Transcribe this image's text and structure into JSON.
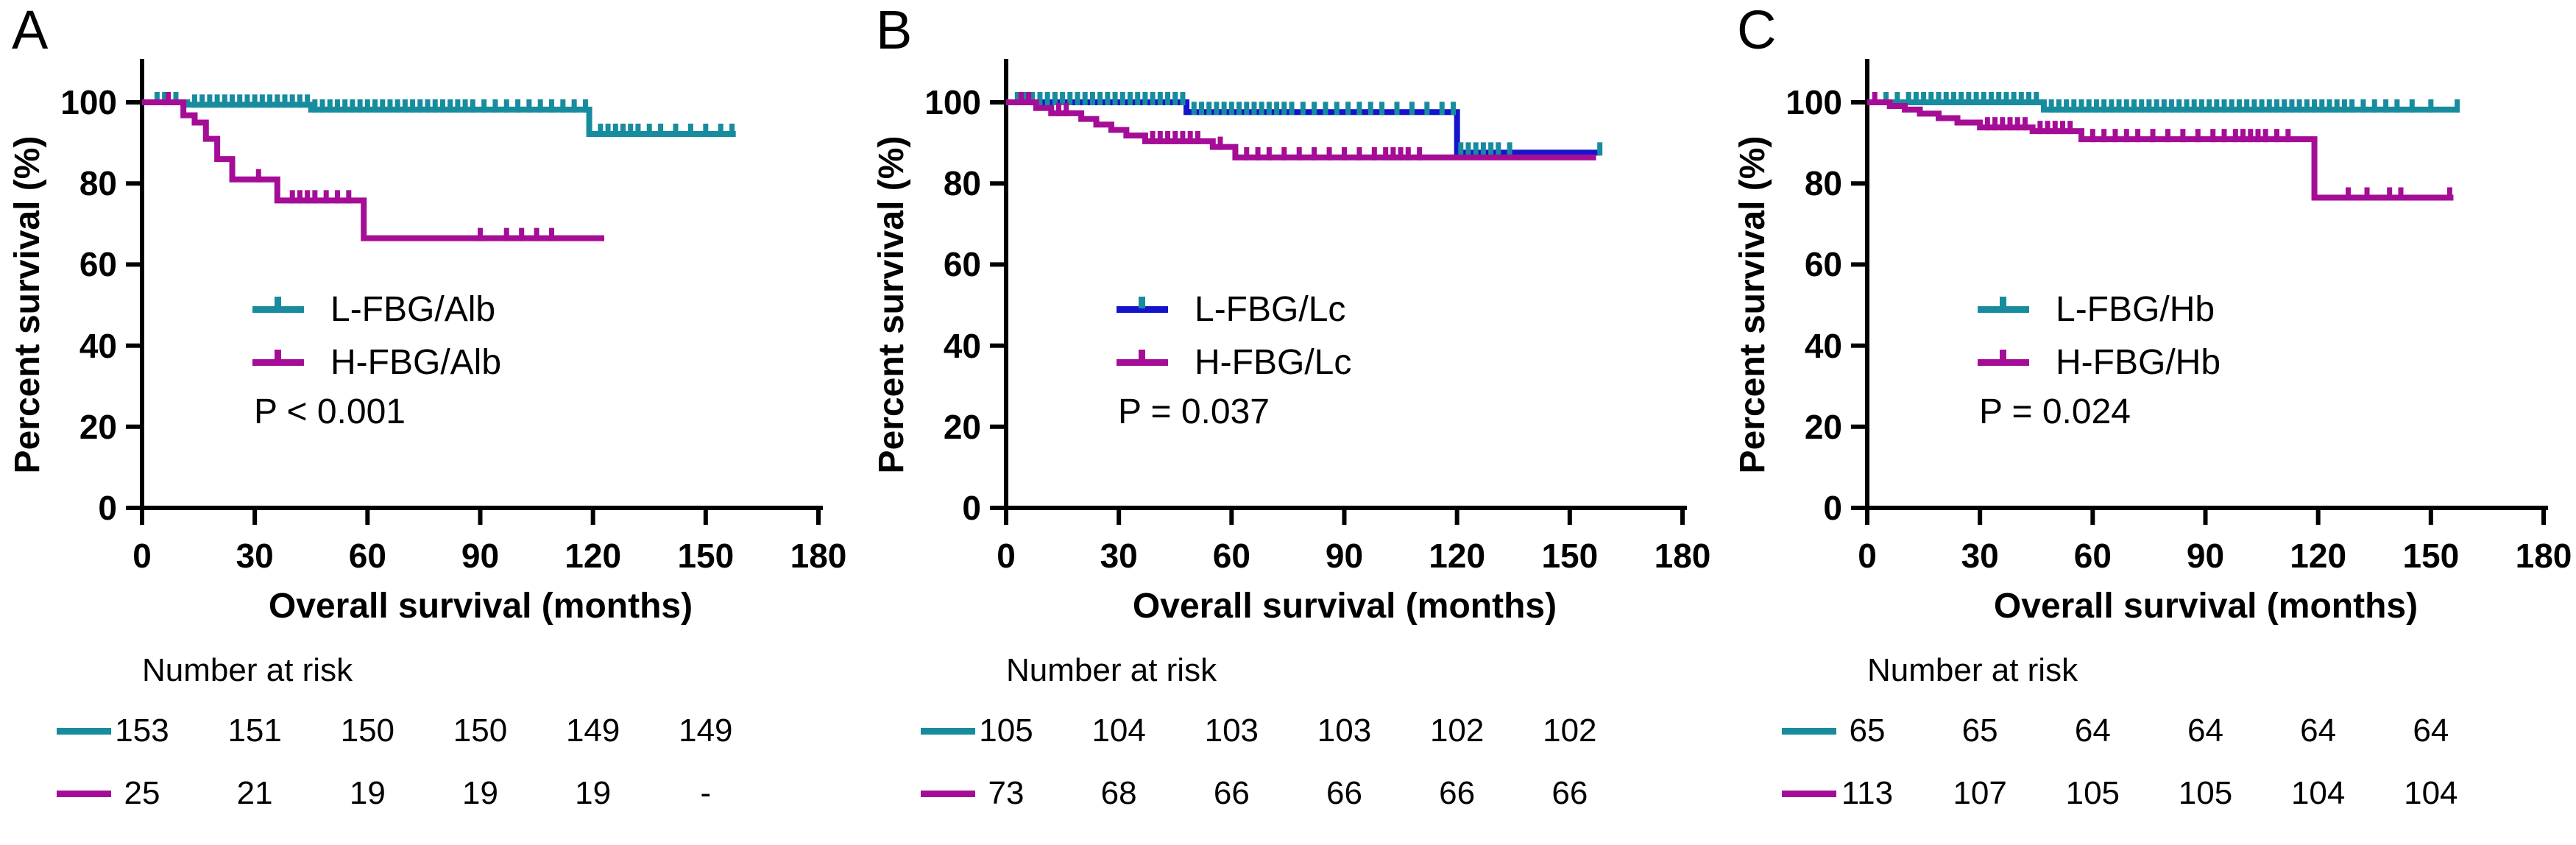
{
  "figure": {
    "background": "#ffffff",
    "colors": {
      "teal": "#178C9E",
      "magenta": "#A50D97",
      "blue": "#1414CC",
      "text": "#000000"
    }
  },
  "chart_data": [
    {
      "panel_label": "A",
      "type": "line",
      "subtype": "kaplan-meier-step",
      "ylabel": "Percent survival (%)",
      "xlabel": "Overall survival (months)",
      "p_label": "P < 0.001",
      "risk_label": "Number at risk",
      "xlim": [
        0,
        180
      ],
      "ylim": [
        0,
        100
      ],
      "xticks": [
        0,
        30,
        60,
        90,
        120,
        150,
        180
      ],
      "yticks": [
        0,
        20,
        40,
        60,
        80,
        100
      ],
      "grid": false,
      "legend_position": "inside-left-middle",
      "series": [
        {
          "name": "L-FBG/Alb",
          "color": "#178C9E",
          "censor_color": "#178C9E",
          "steps": [
            [
              0,
              100
            ],
            [
              12,
              99.4
            ],
            [
              45,
              98.2
            ],
            [
              119,
              92.2
            ]
          ],
          "end": 158,
          "censors": [
            4,
            6,
            9,
            14,
            16,
            18,
            20,
            22,
            24,
            26,
            28,
            30,
            32,
            34,
            36,
            38,
            40,
            42,
            44,
            46,
            48,
            50,
            52,
            54,
            56,
            58,
            60,
            62,
            64,
            66,
            68,
            70,
            72,
            74,
            76,
            78,
            80,
            82,
            84,
            86,
            88,
            91,
            94,
            97,
            100,
            103,
            106,
            109,
            112,
            115,
            118,
            122,
            124,
            126,
            128,
            130,
            132,
            135,
            138,
            142,
            146,
            150,
            154,
            157
          ]
        },
        {
          "name": "H-FBG/Alb",
          "color": "#A50D97",
          "censor_color": "#A50D97",
          "steps": [
            [
              0,
              100
            ],
            [
              11,
              96.8
            ],
            [
              14,
              95
            ],
            [
              17,
              91
            ],
            [
              20,
              86
            ],
            [
              24,
              81
            ],
            [
              36,
              75.8
            ],
            [
              59,
              66.5
            ]
          ],
          "end": 123,
          "censors": [
            7,
            31,
            40,
            42,
            44,
            46,
            49,
            52,
            55,
            90,
            97,
            101,
            105,
            109
          ]
        }
      ],
      "number_at_risk": {
        "times": [
          0,
          30,
          60,
          90,
          120,
          150
        ],
        "rows": [
          {
            "name": "L-FBG/Alb",
            "color": "#178C9E",
            "values": [
              "153",
              "151",
              "150",
              "150",
              "149",
              "149"
            ]
          },
          {
            "name": "H-FBG/Alb",
            "color": "#A50D97",
            "values": [
              "25",
              "21",
              "19",
              "19",
              "19",
              "-"
            ]
          }
        ]
      }
    },
    {
      "panel_label": "B",
      "type": "line",
      "subtype": "kaplan-meier-step",
      "ylabel": "Percent survival (%)",
      "xlabel": "Overall survival (months)",
      "p_label": "P = 0.037",
      "risk_label": "Number at risk",
      "xlim": [
        0,
        180
      ],
      "ylim": [
        0,
        100
      ],
      "xticks": [
        0,
        30,
        60,
        90,
        120,
        150,
        180
      ],
      "yticks": [
        0,
        20,
        40,
        60,
        80,
        100
      ],
      "grid": false,
      "legend_position": "inside-left-middle",
      "series": [
        {
          "name": "L-FBG/Lc",
          "color": "#1414CC",
          "censor_color": "#178C9E",
          "steps": [
            [
              0,
              100
            ],
            [
              48,
              97.6
            ],
            [
              120,
              87.6
            ]
          ],
          "end": 158,
          "censors": [
            3,
            5,
            7,
            9,
            11,
            13,
            15,
            17,
            19,
            21,
            23,
            25,
            27,
            29,
            31,
            33,
            35,
            37,
            39,
            41,
            43,
            45,
            47,
            50,
            52,
            54,
            56,
            58,
            60,
            62,
            64,
            66,
            68,
            70,
            72,
            74,
            76,
            79,
            82,
            85,
            88,
            91,
            94,
            97,
            100,
            104,
            108,
            112,
            116,
            119,
            121,
            123,
            125,
            127,
            129,
            131,
            134,
            158
          ]
        },
        {
          "name": "H-FBG/Lc",
          "color": "#A50D97",
          "censor_color": "#A50D97",
          "steps": [
            [
              0,
              100
            ],
            [
              8,
              98.6
            ],
            [
              12,
              97.3
            ],
            [
              20,
              95.9
            ],
            [
              24,
              94.5
            ],
            [
              28,
              93.2
            ],
            [
              32,
              91.8
            ],
            [
              37,
              90.4
            ],
            [
              55,
              89
            ],
            [
              61,
              86.4
            ]
          ],
          "end": 157,
          "censors": [
            4,
            6,
            14,
            16,
            39,
            41,
            43,
            45,
            47,
            49,
            51,
            57,
            64,
            67,
            70,
            74,
            78,
            82,
            86,
            90,
            94,
            98,
            101,
            103,
            105,
            107,
            110
          ]
        }
      ],
      "number_at_risk": {
        "times": [
          0,
          30,
          60,
          90,
          120,
          150
        ],
        "rows": [
          {
            "name": "L-FBG/Lc",
            "color": "#178C9E",
            "values": [
              "105",
              "104",
              "103",
              "103",
              "102",
              "102"
            ]
          },
          {
            "name": "H-FBG/Lc",
            "color": "#A50D97",
            "values": [
              "73",
              "68",
              "66",
              "66",
              "66",
              "66"
            ]
          }
        ]
      }
    },
    {
      "panel_label": "C",
      "type": "line",
      "subtype": "kaplan-meier-step",
      "ylabel": "Percent survival (%)",
      "xlabel": "Overall survival (months)",
      "p_label": "P = 0.024",
      "risk_label": "Number at risk",
      "xlim": [
        0,
        180
      ],
      "ylim": [
        0,
        100
      ],
      "xticks": [
        0,
        30,
        60,
        90,
        120,
        150,
        180
      ],
      "yticks": [
        0,
        20,
        40,
        60,
        80,
        100
      ],
      "grid": false,
      "legend_position": "inside-left-middle",
      "series": [
        {
          "name": "L-FBG/Hb",
          "color": "#178C9E",
          "censor_color": "#178C9E",
          "steps": [
            [
              0,
              100
            ],
            [
              47,
              98.2
            ]
          ],
          "end": 157,
          "censors": [
            5,
            8,
            11,
            13,
            15,
            17,
            19,
            21,
            23,
            25,
            27,
            29,
            31,
            33,
            35,
            37,
            39,
            41,
            43,
            45,
            49,
            51,
            53,
            55,
            57,
            59,
            61,
            63,
            65,
            67,
            69,
            71,
            73,
            75,
            77,
            79,
            81,
            83,
            85,
            87,
            89,
            91,
            93,
            95,
            97,
            99,
            101,
            103,
            105,
            107,
            109,
            111,
            113,
            115,
            117,
            119,
            121,
            123,
            125,
            127,
            129,
            132,
            135,
            138,
            141,
            145,
            150,
            157
          ]
        },
        {
          "name": "H-FBG/Hb",
          "color": "#A50D97",
          "censor_color": "#A50D97",
          "steps": [
            [
              0,
              100
            ],
            [
              6,
              99.1
            ],
            [
              10,
              98.2
            ],
            [
              14,
              97.2
            ],
            [
              19,
              96.1
            ],
            [
              24,
              95
            ],
            [
              30,
              93.8
            ],
            [
              44,
              92.9
            ],
            [
              57,
              90.9
            ],
            [
              119,
              76.5
            ]
          ],
          "end": 156,
          "censors": [
            2,
            32,
            34,
            36,
            38,
            40,
            42,
            46,
            48,
            50,
            52,
            54,
            60,
            63,
            66,
            69,
            72,
            76,
            80,
            84,
            88,
            92,
            95,
            98,
            100,
            102,
            104,
            106,
            109,
            112,
            128,
            133,
            139,
            142,
            155
          ]
        }
      ],
      "number_at_risk": {
        "times": [
          0,
          30,
          60,
          90,
          120,
          150
        ],
        "rows": [
          {
            "name": "L-FBG/Hb",
            "color": "#178C9E",
            "values": [
              "65",
              "65",
              "64",
              "64",
              "64",
              "64"
            ]
          },
          {
            "name": "H-FBG/Hb",
            "color": "#A50D97",
            "values": [
              "113",
              "107",
              "105",
              "105",
              "104",
              "104"
            ]
          }
        ]
      }
    }
  ]
}
